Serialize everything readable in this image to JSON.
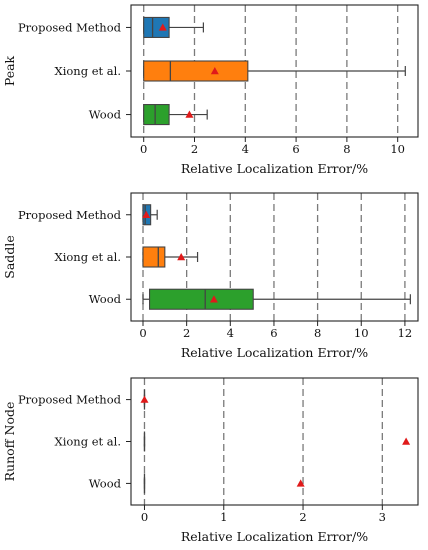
{
  "colors": {
    "grid": "#7a7a7a",
    "frame": "#222222",
    "whisker": "#444444",
    "mean_marker": "#e01a1a"
  },
  "chart_data": [
    {
      "type": "box",
      "panel": "Peak",
      "xlabel": "Relative Localization Error/%",
      "xlim": [
        -0.5,
        10.8
      ],
      "xticks": [
        0,
        2,
        4,
        6,
        8,
        10
      ],
      "grid": "vertical dashed",
      "categories": [
        "Proposed Method",
        "Xiong et al.",
        "Wood"
      ],
      "boxes": [
        {
          "label": "Proposed Method",
          "color": "#1f77b4",
          "whislo": 0,
          "q1": 0,
          "med": 0.35,
          "q3": 1.0,
          "whishi": 2.35,
          "mean": 0.75
        },
        {
          "label": "Xiong et al.",
          "color": "#ff7f0e",
          "whislo": 0,
          "q1": 0,
          "med": 1.05,
          "q3": 4.1,
          "whishi": 10.3,
          "mean": 2.8
        },
        {
          "label": "Wood",
          "color": "#2ca02c",
          "whislo": 0,
          "q1": 0,
          "med": 0.45,
          "q3": 1.0,
          "whishi": 2.5,
          "mean": 1.8
        }
      ]
    },
    {
      "type": "box",
      "panel": "Saddle",
      "xlabel": "Relative Localization Error/%",
      "xlim": [
        -0.55,
        12.6
      ],
      "xticks": [
        0,
        2,
        4,
        6,
        8,
        10,
        12
      ],
      "grid": "vertical dashed",
      "categories": [
        "Proposed Method",
        "Xiong et al.",
        "Wood"
      ],
      "boxes": [
        {
          "label": "Proposed Method",
          "color": "#1f77b4",
          "whislo": 0,
          "q1": 0,
          "med": 0.1,
          "q3": 0.35,
          "whishi": 0.65,
          "mean": 0.15
        },
        {
          "label": "Xiong et al.",
          "color": "#ff7f0e",
          "whislo": 0,
          "q1": 0,
          "med": 0.7,
          "q3": 1.0,
          "whishi": 2.5,
          "mean": 1.75
        },
        {
          "label": "Wood",
          "color": "#2ca02c",
          "whislo": 0,
          "q1": 0.3,
          "med": 2.85,
          "q3": 5.05,
          "whishi": 12.25,
          "mean": 3.25
        }
      ]
    },
    {
      "type": "box",
      "panel": "Runoff Node",
      "xlabel": "Relative Localization Error/%",
      "xlim": [
        -0.17,
        3.45
      ],
      "xticks": [
        0,
        1,
        2,
        3
      ],
      "grid": "vertical dashed",
      "categories": [
        "Proposed Method",
        "Xiong et al.",
        "Wood"
      ],
      "boxes": [
        {
          "label": "Proposed Method",
          "color": "#1f77b4",
          "whislo": 0,
          "q1": 0,
          "med": 0,
          "q3": 0,
          "whishi": 0,
          "mean": 0
        },
        {
          "label": "Xiong et al.",
          "color": "#ff7f0e",
          "whislo": 0,
          "q1": 0,
          "med": 0,
          "q3": 0,
          "whishi": 0,
          "mean": 3.3
        },
        {
          "label": "Wood",
          "color": "#2ca02c",
          "whislo": 0,
          "q1": 0,
          "med": 0,
          "q3": 0,
          "whishi": 0,
          "mean": 1.97
        }
      ]
    }
  ]
}
